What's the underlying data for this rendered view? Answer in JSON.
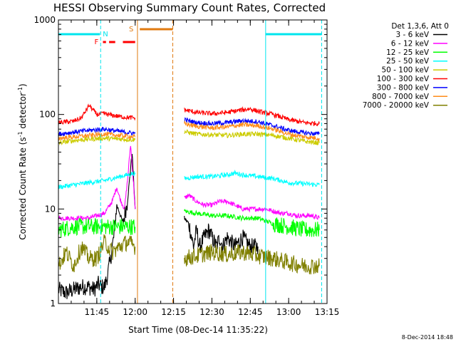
{
  "colors": {
    "background": "#ffffff",
    "axis": "#000000",
    "band_3_6": "#000000",
    "band_6_12": "#ff00ff",
    "band_12_25": "#00ff00",
    "band_25_50": "#00ffff",
    "band_50_100": "#cccc00",
    "band_100_300": "#ff0000",
    "band_300_800": "#0000ff",
    "band_800_7000": "#ff8c1a",
    "band_7000_20000": "#808000",
    "saa_lines": "#00e5ee",
    "flare_line": "#ff0000",
    "orbit_line": "#e07a10"
  },
  "chart_data": {
    "type": "line",
    "title": "HESSI Observing Summary Count Rates, Corrected",
    "xlabel": "Start Time (08-Dec-14 11:35:22)",
    "ylabel": "Corrected Count Rate (s⁻¹ detector⁻¹)",
    "ylabel_main": "Corrected Count Rate (s",
    "ylabel_sup1": "-1",
    "ylabel_mid": " detector",
    "ylabel_sup2": "-1",
    "ylabel_end": ")",
    "yscale": "log",
    "ylim": [
      1,
      1000
    ],
    "xlim_minutes": [
      11.5,
      13.25
    ],
    "x_ticks": [
      {
        "label": "11:45",
        "t": 11.75
      },
      {
        "label": "12:00",
        "t": 12.0
      },
      {
        "label": "12:15",
        "t": 12.25
      },
      {
        "label": "12:30",
        "t": 12.5
      },
      {
        "label": "12:45",
        "t": 12.75
      },
      {
        "label": "13:00",
        "t": 13.0
      },
      {
        "label": "13:15",
        "t": 13.25
      }
    ],
    "y_ticks": [
      {
        "label": "1",
        "v": 1
      },
      {
        "label": "10",
        "v": 10
      },
      {
        "label": "100",
        "v": 100
      },
      {
        "label": "1000",
        "v": 1000
      }
    ],
    "legend_title": "Det 1,3,6, Att 0",
    "series": [
      {
        "name": "3 - 6 keV",
        "color": "#000000",
        "segments": [
          {
            "t": [
              11.5,
              11.55,
              11.6,
              11.65,
              11.7,
              11.73,
              11.76,
              11.78,
              11.8,
              11.82,
              11.84,
              11.86,
              11.88,
              11.9,
              11.92,
              11.95,
              11.98,
              12.0
            ],
            "v": [
              1.4,
              1.3,
              1.4,
              1.5,
              1.5,
              1.4,
              1.6,
              1.5,
              1.5,
              2.0,
              3.0,
              5.0,
              11.0,
              9.0,
              7.0,
              12.0,
              40.0,
              10.0
            ]
          },
          {
            "t": [
              12.32,
              12.35,
              12.38,
              12.4,
              12.42,
              12.45,
              12.48,
              12.5,
              12.53,
              12.55,
              12.57,
              12.6,
              12.65,
              12.7,
              12.75,
              12.8
            ],
            "v": [
              8.0,
              7.0,
              4.0,
              6.0,
              4.0,
              5.0,
              6.0,
              5.0,
              4.0,
              5.0,
              4.0,
              5.0,
              4.0,
              5.0,
              4.0,
              4.0
            ]
          }
        ]
      },
      {
        "name": "6 - 12 keV",
        "color": "#ff00ff",
        "segments": [
          {
            "t": [
              11.5,
              11.6,
              11.7,
              11.75,
              11.8,
              11.85,
              11.88,
              11.9,
              11.93,
              11.95,
              11.97,
              11.99,
              12.0
            ],
            "v": [
              8.0,
              8.0,
              8.0,
              8.5,
              9.0,
              12.0,
              17.0,
              13.0,
              10.0,
              20.0,
              48.0,
              18.0,
              10.0
            ]
          },
          {
            "t": [
              12.32,
              12.35,
              12.4,
              12.45,
              12.5,
              12.55,
              12.6,
              12.65,
              12.7,
              12.75,
              12.8,
              12.85,
              12.9,
              12.95,
              13.0,
              13.05,
              13.1,
              13.15,
              13.2
            ],
            "v": [
              13.0,
              14.0,
              12.0,
              11.0,
              11.0,
              12.0,
              12.0,
              11.0,
              10.0,
              10.0,
              10.0,
              10.0,
              9.5,
              9.0,
              9.0,
              8.5,
              8.5,
              8.5,
              8.0
            ]
          }
        ]
      },
      {
        "name": "12 - 25 keV",
        "color": "#00ff00",
        "segments": [
          {
            "t": [
              11.5,
              11.6,
              11.7,
              11.8,
              11.9,
              12.0
            ],
            "v": [
              6.0,
              6.5,
              6.5,
              6.5,
              6.5,
              6.5
            ]
          },
          {
            "t": [
              12.32,
              12.4,
              12.5,
              12.6,
              12.7,
              12.8,
              12.9,
              13.0,
              13.1,
              13.2
            ],
            "v": [
              9.5,
              9.0,
              8.5,
              8.5,
              8.0,
              8.0,
              7.0,
              6.5,
              6.0,
              6.0
            ]
          }
        ]
      },
      {
        "name": "25 - 50 keV",
        "color": "#00ffff",
        "segments": [
          {
            "t": [
              11.5,
              11.6,
              11.7,
              11.8,
              11.9,
              12.0
            ],
            "v": [
              17.0,
              18.0,
              19.0,
              20.0,
              22.0,
              24.0
            ]
          },
          {
            "t": [
              12.32,
              12.4,
              12.5,
              12.6,
              12.65,
              12.7,
              12.8,
              12.9,
              13.0,
              13.1,
              13.2
            ],
            "v": [
              21.0,
              22.0,
              22.0,
              23.0,
              24.0,
              23.0,
              22.0,
              21.0,
              19.0,
              18.5,
              18.0
            ]
          }
        ]
      },
      {
        "name": "50 - 100 keV",
        "color": "#cccc00",
        "segments": [
          {
            "t": [
              11.5,
              11.6,
              11.7,
              11.8,
              11.9,
              12.0
            ],
            "v": [
              50.0,
              53.0,
              55.0,
              56.0,
              55.0,
              54.0
            ]
          },
          {
            "t": [
              12.32,
              12.4,
              12.5,
              12.6,
              12.7,
              12.8,
              12.9,
              13.0,
              13.1,
              13.2
            ],
            "v": [
              66.0,
              62.0,
              61.0,
              60.0,
              62.0,
              62.0,
              60.0,
              56.0,
              52.0,
              50.0
            ]
          }
        ]
      },
      {
        "name": "100 - 300 keV",
        "color": "#ff0000",
        "segments": [
          {
            "t": [
              11.5,
              11.6,
              11.65,
              11.7,
              11.75,
              11.8,
              11.85,
              11.9,
              11.95,
              12.0
            ],
            "v": [
              82.0,
              85.0,
              92.0,
              125.0,
              100.0,
              102.0,
              98.0,
              95.0,
              93.0,
              92.0
            ]
          },
          {
            "t": [
              12.32,
              12.4,
              12.5,
              12.6,
              12.7,
              12.75,
              12.8,
              12.9,
              13.0,
              13.1,
              13.2
            ],
            "v": [
              112.0,
              105.0,
              102.0,
              105.0,
              112.0,
              115.0,
              108.0,
              100.0,
              88.0,
              82.0,
              80.0
            ]
          }
        ]
      },
      {
        "name": "300 - 800 keV",
        "color": "#0000ff",
        "segments": [
          {
            "t": [
              11.5,
              11.6,
              11.7,
              11.8,
              11.9,
              12.0
            ],
            "v": [
              62.0,
              65.0,
              68.0,
              70.0,
              66.0,
              63.0
            ]
          },
          {
            "t": [
              12.32,
              12.4,
              12.5,
              12.6,
              12.7,
              12.8,
              12.9,
              13.0,
              13.1,
              13.2
            ],
            "v": [
              88.0,
              82.0,
              80.0,
              82.0,
              86.0,
              84.0,
              76.0,
              68.0,
              64.0,
              62.0
            ]
          }
        ]
      },
      {
        "name": "800 - 7000 keV",
        "color": "#ff8c1a",
        "segments": [
          {
            "t": [
              11.5,
              11.6,
              11.7,
              11.8,
              11.9,
              12.0
            ],
            "v": [
              56.0,
              58.0,
              60.0,
              62.0,
              60.0,
              58.0
            ]
          },
          {
            "t": [
              12.32,
              12.4,
              12.5,
              12.6,
              12.7,
              12.8,
              12.9,
              13.0,
              13.1,
              13.2
            ],
            "v": [
              80.0,
              75.0,
              72.0,
              74.0,
              78.0,
              76.0,
              70.0,
              62.0,
              58.0,
              56.0
            ]
          }
        ]
      },
      {
        "name": "7000 - 20000 keV",
        "color": "#808000",
        "segments": [
          {
            "t": [
              11.5,
              11.55,
              11.6,
              11.65,
              11.7,
              11.75,
              11.8,
              11.85,
              11.9,
              11.95,
              12.0
            ],
            "v": [
              2.5,
              3.5,
              2.5,
              4.0,
              3.0,
              3.0,
              4.5,
              3.5,
              4.0,
              4.5,
              4.0
            ]
          },
          {
            "t": [
              12.32,
              12.4,
              12.5,
              12.6,
              12.7,
              12.8,
              12.9,
              13.0,
              13.1,
              13.2
            ],
            "v": [
              3.0,
              3.2,
              3.5,
              3.3,
              3.5,
              3.2,
              3.0,
              2.7,
              2.5,
              2.5
            ]
          }
        ]
      }
    ],
    "annotations": {
      "saa_lines": [
        11.5,
        11.775,
        12.85,
        13.215
      ],
      "night_lines": [
        12.015,
        12.245
      ],
      "saa_bars": [
        [
          11.5,
          11.77
        ],
        [
          12.85,
          13.215
        ]
      ],
      "orbit_bar": [
        12.03,
        12.245
      ],
      "flare_dashes": [
        [
          11.79,
          11.81
        ],
        [
          11.83,
          11.87
        ],
        [
          11.92,
          12.0
        ]
      ],
      "label_N": "N",
      "label_S": "S",
      "label_F": "F"
    }
  },
  "footer_timestamp": "8-Dec-2014 18:48"
}
